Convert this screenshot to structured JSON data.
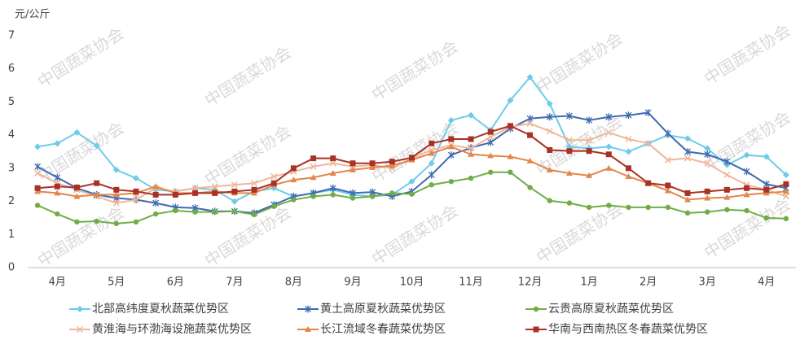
{
  "chart_data": {
    "type": "line",
    "y_label": "元/公斤",
    "watermark": "中国蔬菜协会",
    "categories": [
      null,
      "4月",
      null,
      null,
      "5月",
      null,
      null,
      "6月",
      null,
      null,
      "7月",
      null,
      null,
      "8月",
      null,
      null,
      "9月",
      null,
      null,
      "10月",
      null,
      null,
      "11月",
      null,
      null,
      "12月",
      null,
      null,
      "1月",
      null,
      null,
      "2月",
      null,
      null,
      "3月",
      null,
      null,
      "4月",
      null
    ],
    "ylim": [
      0,
      7
    ],
    "yticks": [
      0,
      1,
      2,
      3,
      4,
      5,
      6,
      7
    ],
    "grid": false,
    "series": [
      {
        "name": "北部高纬度夏秋蔬菜优势区",
        "color": "#6fcbe8",
        "marker": "diamond",
        "values": [
          3.65,
          3.75,
          4.08,
          3.68,
          2.95,
          2.7,
          2.35,
          2.3,
          2.4,
          2.35,
          2.0,
          2.3,
          2.4,
          2.15,
          2.25,
          2.35,
          2.2,
          2.15,
          2.2,
          2.6,
          3.15,
          4.45,
          4.6,
          4.15,
          5.05,
          5.75,
          4.95,
          3.65,
          3.6,
          3.65,
          3.5,
          3.75,
          4.0,
          3.9,
          3.6,
          3.1,
          3.4,
          3.35,
          2.8
        ]
      },
      {
        "name": "黄土高原夏秋蔬菜优势区",
        "color": "#3f6bb3",
        "marker": "star",
        "values": [
          3.05,
          2.72,
          2.4,
          2.2,
          2.1,
          2.05,
          1.95,
          1.82,
          1.8,
          1.7,
          1.7,
          1.65,
          1.9,
          2.15,
          2.25,
          2.4,
          2.25,
          2.28,
          2.15,
          2.3,
          2.8,
          3.4,
          3.62,
          3.78,
          4.2,
          4.5,
          4.55,
          4.58,
          4.45,
          4.55,
          4.6,
          4.68,
          4.05,
          3.5,
          3.42,
          3.2,
          2.9,
          2.52,
          2.4
        ]
      },
      {
        "name": "云贵高原夏秋蔬菜优势区",
        "color": "#70ad47",
        "marker": "circle",
        "values": [
          1.88,
          1.62,
          1.38,
          1.4,
          1.33,
          1.38,
          1.62,
          1.72,
          1.68,
          1.68,
          1.7,
          1.6,
          1.85,
          2.05,
          2.15,
          2.2,
          2.1,
          2.15,
          2.25,
          2.22,
          2.5,
          2.6,
          2.7,
          2.88,
          2.88,
          2.42,
          2.02,
          1.95,
          1.82,
          1.88,
          1.82,
          1.82,
          1.82,
          1.65,
          1.68,
          1.75,
          1.72,
          1.5,
          1.48
        ]
      },
      {
        "name": "黄淮海与环渤海设施蔬菜优势区",
        "color": "#efb79b",
        "marker": "x",
        "values": [
          2.85,
          2.55,
          2.35,
          2.15,
          1.95,
          2.05,
          2.4,
          2.3,
          2.4,
          2.45,
          2.5,
          2.55,
          2.75,
          2.9,
          3.05,
          3.15,
          3.05,
          3.1,
          3.0,
          3.3,
          3.55,
          3.7,
          3.6,
          3.95,
          4.25,
          4.35,
          4.12,
          3.85,
          3.85,
          4.08,
          3.88,
          3.75,
          3.25,
          3.3,
          3.15,
          2.8,
          2.5,
          2.35,
          2.15
        ]
      },
      {
        "name": "长江流域冬春蔬菜优势区",
        "color": "#e3864a",
        "marker": "triangle",
        "values": [
          2.3,
          2.25,
          2.15,
          2.2,
          2.2,
          2.25,
          2.45,
          2.25,
          2.25,
          2.3,
          2.25,
          2.25,
          2.5,
          2.65,
          2.72,
          2.85,
          2.95,
          3.02,
          3.08,
          3.25,
          3.45,
          3.65,
          3.42,
          3.38,
          3.35,
          3.22,
          2.95,
          2.85,
          2.78,
          3.0,
          2.75,
          2.55,
          2.32,
          2.05,
          2.1,
          2.12,
          2.2,
          2.25,
          2.3
        ]
      },
      {
        "name": "华南与西南热区冬春蔬菜优势区",
        "color": "#a93226",
        "marker": "square",
        "values": [
          2.4,
          2.45,
          2.42,
          2.55,
          2.35,
          2.3,
          2.2,
          2.2,
          2.25,
          2.25,
          2.3,
          2.35,
          2.55,
          3.0,
          3.3,
          3.3,
          3.15,
          3.15,
          3.2,
          3.32,
          3.75,
          3.88,
          3.88,
          4.1,
          4.28,
          4.0,
          3.55,
          3.52,
          3.52,
          3.42,
          3.0,
          2.55,
          2.48,
          2.25,
          2.3,
          2.35,
          2.4,
          2.35,
          2.52
        ]
      }
    ]
  }
}
